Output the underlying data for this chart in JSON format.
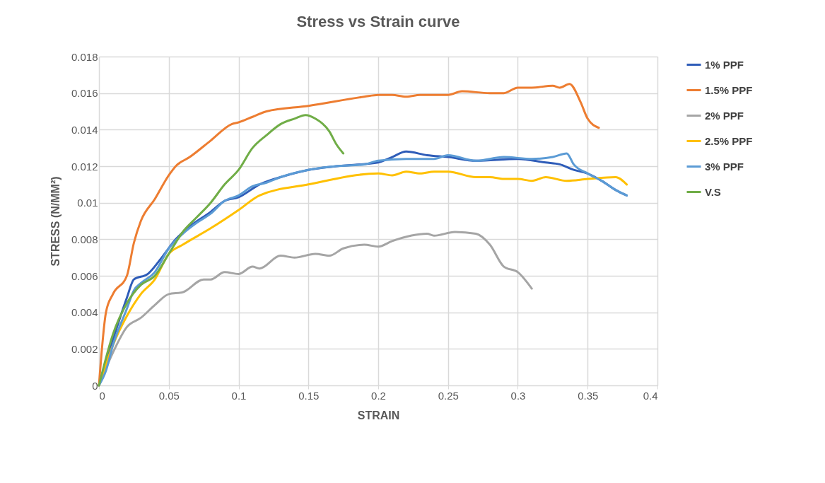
{
  "chart_data": {
    "type": "line",
    "title": "Stress vs Strain curve",
    "xlabel": "STRAIN",
    "ylabel": "STRESS (N/MM²)",
    "xlim": [
      0,
      0.4
    ],
    "xticks": [
      0,
      0.05,
      0.1,
      0.15,
      0.2,
      0.25,
      0.3,
      0.35,
      0.4
    ],
    "ylim": [
      0,
      0.018
    ],
    "yticks": [
      0,
      0.002,
      0.004,
      0.006,
      0.008,
      0.01,
      0.012,
      0.014,
      0.016,
      0.018
    ],
    "grid": true,
    "legend": "right",
    "marker": "none",
    "line_style": "solid",
    "series": [
      {
        "name": "1% PPF",
        "color": "#2e5cb8",
        "x": [
          0,
          0.01,
          0.02,
          0.025,
          0.035,
          0.045,
          0.055,
          0.065,
          0.08,
          0.09,
          0.1,
          0.115,
          0.13,
          0.15,
          0.17,
          0.2,
          0.21,
          0.22,
          0.235,
          0.25,
          0.27,
          0.3,
          0.32,
          0.33,
          0.34,
          0.35,
          0.36,
          0.37,
          0.378
        ],
        "values": [
          0,
          0.0025,
          0.0048,
          0.0058,
          0.0061,
          0.007,
          0.008,
          0.0087,
          0.0095,
          0.0101,
          0.0103,
          0.011,
          0.0114,
          0.0118,
          0.012,
          0.0122,
          0.0125,
          0.0128,
          0.0126,
          0.0125,
          0.0123,
          0.0124,
          0.0122,
          0.0121,
          0.0118,
          0.0116,
          0.0112,
          0.0107,
          0.0104
        ]
      },
      {
        "name": "1.5% PPF",
        "color": "#ed7d31",
        "x": [
          0,
          0.005,
          0.01,
          0.02,
          0.025,
          0.03,
          0.04,
          0.05,
          0.055,
          0.065,
          0.08,
          0.095,
          0.1,
          0.11,
          0.12,
          0.15,
          0.19,
          0.2,
          0.21,
          0.22,
          0.23,
          0.25,
          0.26,
          0.28,
          0.29,
          0.3,
          0.31,
          0.325,
          0.33,
          0.337,
          0.345,
          0.35,
          0.358
        ],
        "values": [
          0,
          0.004,
          0.005,
          0.006,
          0.0078,
          0.009,
          0.0102,
          0.0115,
          0.012,
          0.0125,
          0.0134,
          0.0143,
          0.0144,
          0.0147,
          0.015,
          0.0153,
          0.0158,
          0.0159,
          0.0159,
          0.0158,
          0.0159,
          0.0159,
          0.0161,
          0.016,
          0.016,
          0.0163,
          0.0163,
          0.0164,
          0.0163,
          0.0165,
          0.0155,
          0.0146,
          0.0141
        ]
      },
      {
        "name": "2% PPF",
        "color": "#a5a5a5",
        "x": [
          0,
          0.01,
          0.02,
          0.03,
          0.04,
          0.05,
          0.06,
          0.075,
          0.08,
          0.09,
          0.1,
          0.11,
          0.115,
          0.13,
          0.14,
          0.155,
          0.165,
          0.175,
          0.19,
          0.2,
          0.21,
          0.235,
          0.24,
          0.255,
          0.27,
          0.28,
          0.29,
          0.3,
          0.31
        ],
        "values": [
          0,
          0.0018,
          0.0032,
          0.0037,
          0.0044,
          0.005,
          0.0051,
          0.0058,
          0.0058,
          0.0062,
          0.0061,
          0.0065,
          0.0064,
          0.0071,
          0.007,
          0.0072,
          0.0071,
          0.0075,
          0.0077,
          0.0076,
          0.0079,
          0.0083,
          0.0082,
          0.0084,
          0.0083,
          0.0077,
          0.0065,
          0.0062,
          0.0053
        ]
      },
      {
        "name": "2.5% PPF",
        "color": "#ffc000",
        "x": [
          0,
          0.01,
          0.02,
          0.03,
          0.04,
          0.05,
          0.06,
          0.08,
          0.1,
          0.115,
          0.15,
          0.2,
          0.21,
          0.22,
          0.23,
          0.24,
          0.25,
          0.27,
          0.28,
          0.29,
          0.3,
          0.31,
          0.32,
          0.335,
          0.35,
          0.37,
          0.378
        ],
        "values": [
          0,
          0.0022,
          0.0038,
          0.005,
          0.0058,
          0.0072,
          0.0077,
          0.0086,
          0.0096,
          0.0104,
          0.011,
          0.0116,
          0.0115,
          0.0117,
          0.0116,
          0.0117,
          0.0117,
          0.0114,
          0.0114,
          0.0113,
          0.0113,
          0.0112,
          0.0114,
          0.0112,
          0.0113,
          0.0114,
          0.011
        ]
      },
      {
        "name": "3% PPF",
        "color": "#5b9bd5",
        "x": [
          0,
          0.005,
          0.01,
          0.02,
          0.025,
          0.03,
          0.04,
          0.05,
          0.06,
          0.07,
          0.08,
          0.09,
          0.1,
          0.11,
          0.12,
          0.13,
          0.15,
          0.17,
          0.19,
          0.2,
          0.22,
          0.24,
          0.25,
          0.27,
          0.29,
          0.31,
          0.325,
          0.335,
          0.34,
          0.35,
          0.36,
          0.37,
          0.378
        ],
        "values": [
          0,
          0.0008,
          0.0022,
          0.0042,
          0.0052,
          0.0056,
          0.0062,
          0.0075,
          0.0083,
          0.0089,
          0.0094,
          0.0101,
          0.0104,
          0.0109,
          0.0111,
          0.0114,
          0.0118,
          0.012,
          0.0121,
          0.0123,
          0.0124,
          0.0124,
          0.0126,
          0.0123,
          0.0125,
          0.0124,
          0.0125,
          0.0127,
          0.0121,
          0.0116,
          0.0112,
          0.0107,
          0.0104
        ]
      },
      {
        "name": "V.S",
        "color": "#70ad47",
        "x": [
          0,
          0.01,
          0.02,
          0.03,
          0.04,
          0.05,
          0.06,
          0.07,
          0.08,
          0.09,
          0.1,
          0.11,
          0.12,
          0.13,
          0.14,
          0.148,
          0.155,
          0.165,
          0.17,
          0.175
        ],
        "values": [
          0,
          0.0028,
          0.0045,
          0.0055,
          0.006,
          0.0072,
          0.0084,
          0.0092,
          0.01,
          0.011,
          0.0118,
          0.013,
          0.0137,
          0.0143,
          0.0146,
          0.0148,
          0.0146,
          0.0139,
          0.0132,
          0.0127
        ]
      }
    ]
  }
}
